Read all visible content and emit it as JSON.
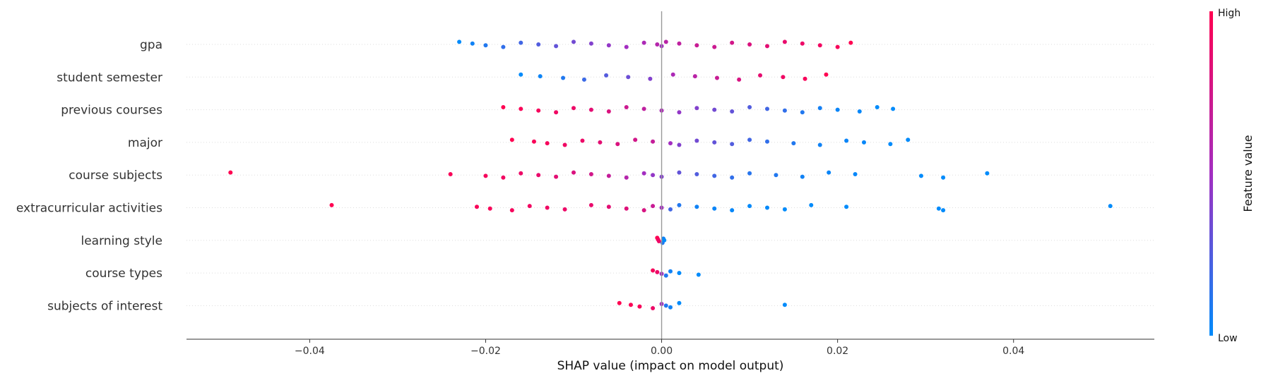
{
  "chart_data": {
    "type": "scatter",
    "subtype": "shap-beeswarm",
    "title": "",
    "xlabel": "SHAP value (impact on model output)",
    "xlim": [
      -0.054,
      0.056
    ],
    "xticks": [
      -0.04,
      -0.02,
      0.0,
      0.02,
      0.04
    ],
    "xtick_labels": [
      "−0.04",
      "−0.02",
      "0.00",
      "0.02",
      "0.04"
    ],
    "zero_line": 0.0,
    "row_gridlines": true,
    "colorbar": {
      "label": "Feature value",
      "high_label": "High",
      "low_label": "Low",
      "low_color": "#008bfb",
      "mid_color": "#a32ec1",
      "high_color": "#ff0051"
    },
    "features": [
      {
        "name": "gpa",
        "points": [
          [
            -0.023,
            0.0
          ],
          [
            -0.0215,
            0.05
          ],
          [
            -0.02,
            0.1
          ],
          [
            -0.018,
            0.15
          ],
          [
            -0.016,
            0.2
          ],
          [
            -0.014,
            0.25
          ],
          [
            -0.012,
            0.3
          ],
          [
            -0.01,
            0.35
          ],
          [
            -0.008,
            0.4
          ],
          [
            -0.006,
            0.45
          ],
          [
            -0.004,
            0.5
          ],
          [
            -0.002,
            0.55
          ],
          [
            -0.0005,
            0.6
          ],
          [
            0.0,
            0.5
          ],
          [
            0.0005,
            0.62
          ],
          [
            0.002,
            0.65
          ],
          [
            0.004,
            0.7
          ],
          [
            0.006,
            0.72
          ],
          [
            0.008,
            0.75
          ],
          [
            0.01,
            0.8
          ],
          [
            0.012,
            0.85
          ],
          [
            0.014,
            0.88
          ],
          [
            0.016,
            0.9
          ],
          [
            0.018,
            0.93
          ],
          [
            0.02,
            0.96
          ],
          [
            0.0215,
            1.0
          ]
        ]
      },
      {
        "name": "student semester",
        "points": [
          [
            -0.016,
            0.0
          ],
          [
            -0.0138,
            0.04
          ],
          [
            -0.0112,
            0.1
          ],
          [
            -0.0088,
            0.18
          ],
          [
            -0.0063,
            0.26
          ],
          [
            -0.0038,
            0.33
          ],
          [
            -0.0013,
            0.4
          ],
          [
            0.0013,
            0.55
          ],
          [
            0.0038,
            0.62
          ],
          [
            0.0063,
            0.7
          ],
          [
            0.0088,
            0.78
          ],
          [
            0.0112,
            0.86
          ],
          [
            0.0138,
            0.92
          ],
          [
            0.0163,
            0.96
          ],
          [
            0.0187,
            1.0
          ]
        ]
      },
      {
        "name": "previous courses",
        "points": [
          [
            -0.018,
            1.0
          ],
          [
            -0.016,
            0.97
          ],
          [
            -0.014,
            0.95
          ],
          [
            -0.012,
            0.92
          ],
          [
            -0.01,
            0.9
          ],
          [
            -0.008,
            0.85
          ],
          [
            -0.006,
            0.8
          ],
          [
            -0.004,
            0.72
          ],
          [
            -0.002,
            0.65
          ],
          [
            0.0,
            0.55
          ],
          [
            0.002,
            0.45
          ],
          [
            0.004,
            0.4
          ],
          [
            0.006,
            0.35
          ],
          [
            0.008,
            0.3
          ],
          [
            0.01,
            0.25
          ],
          [
            0.012,
            0.2
          ],
          [
            0.014,
            0.15
          ],
          [
            0.016,
            0.1
          ],
          [
            0.018,
            0.06
          ],
          [
            0.02,
            0.03
          ],
          [
            0.0225,
            0.02
          ],
          [
            0.0245,
            0.0
          ],
          [
            0.0263,
            0.0
          ]
        ]
      },
      {
        "name": "major",
        "points": [
          [
            -0.017,
            1.0
          ],
          [
            -0.0145,
            0.97
          ],
          [
            -0.013,
            0.95
          ],
          [
            -0.011,
            0.92
          ],
          [
            -0.009,
            0.9
          ],
          [
            -0.007,
            0.85
          ],
          [
            -0.005,
            0.8
          ],
          [
            -0.003,
            0.75
          ],
          [
            -0.001,
            0.68
          ],
          [
            0.001,
            0.5
          ],
          [
            0.002,
            0.4
          ],
          [
            0.004,
            0.35
          ],
          [
            0.006,
            0.3
          ],
          [
            0.008,
            0.25
          ],
          [
            0.01,
            0.2
          ],
          [
            0.012,
            0.15
          ],
          [
            0.015,
            0.1
          ],
          [
            0.018,
            0.05
          ],
          [
            0.021,
            0.03
          ],
          [
            0.023,
            0.02
          ],
          [
            0.026,
            0.0
          ],
          [
            0.028,
            0.0
          ]
        ]
      },
      {
        "name": "course subjects",
        "points": [
          [
            -0.049,
            1.0
          ],
          [
            -0.024,
            0.97
          ],
          [
            -0.02,
            0.95
          ],
          [
            -0.018,
            0.93
          ],
          [
            -0.016,
            0.9
          ],
          [
            -0.014,
            0.88
          ],
          [
            -0.012,
            0.85
          ],
          [
            -0.01,
            0.8
          ],
          [
            -0.008,
            0.75
          ],
          [
            -0.006,
            0.68
          ],
          [
            -0.004,
            0.6
          ],
          [
            -0.002,
            0.5
          ],
          [
            -0.001,
            0.45
          ],
          [
            0.0,
            0.4
          ],
          [
            0.002,
            0.3
          ],
          [
            0.004,
            0.25
          ],
          [
            0.006,
            0.2
          ],
          [
            0.008,
            0.15
          ],
          [
            0.01,
            0.12
          ],
          [
            0.013,
            0.1
          ],
          [
            0.016,
            0.05
          ],
          [
            0.019,
            0.03
          ],
          [
            0.022,
            0.02
          ],
          [
            0.0295,
            0.0
          ],
          [
            0.032,
            0.0
          ],
          [
            0.037,
            0.0
          ]
        ]
      },
      {
        "name": "extracurricular activities",
        "points": [
          [
            -0.0375,
            1.0
          ],
          [
            -0.021,
            0.97
          ],
          [
            -0.0195,
            0.96
          ],
          [
            -0.017,
            0.95
          ],
          [
            -0.015,
            0.93
          ],
          [
            -0.013,
            0.92
          ],
          [
            -0.011,
            0.9
          ],
          [
            -0.008,
            0.88
          ],
          [
            -0.006,
            0.85
          ],
          [
            -0.004,
            0.82
          ],
          [
            -0.002,
            0.78
          ],
          [
            -0.001,
            0.7
          ],
          [
            0.0,
            0.5
          ],
          [
            0.001,
            0.2
          ],
          [
            0.002,
            0.1
          ],
          [
            0.004,
            0.05
          ],
          [
            0.006,
            0.03
          ],
          [
            0.008,
            0.02
          ],
          [
            0.01,
            0.01
          ],
          [
            0.012,
            0.01
          ],
          [
            0.014,
            0.0
          ],
          [
            0.017,
            0.0
          ],
          [
            0.021,
            0.0
          ],
          [
            0.0315,
            0.0
          ],
          [
            0.032,
            0.0
          ],
          [
            0.051,
            0.0
          ]
        ]
      },
      {
        "name": "learning style",
        "points": [
          [
            -0.0005,
            1.0
          ],
          [
            -0.0004,
            0.95
          ],
          [
            -0.0003,
            0.9
          ],
          [
            0.0001,
            0.1
          ],
          [
            0.0002,
            0.05
          ],
          [
            0.0003,
            0.0
          ]
        ]
      },
      {
        "name": "course types",
        "points": [
          [
            -0.001,
            0.95
          ],
          [
            -0.0005,
            0.9
          ],
          [
            0.0,
            0.5
          ],
          [
            0.0005,
            0.1
          ],
          [
            0.001,
            0.05
          ],
          [
            0.002,
            0.0
          ],
          [
            0.0042,
            0.0
          ]
        ]
      },
      {
        "name": "subjects of interest",
        "points": [
          [
            -0.0048,
            1.0
          ],
          [
            -0.0035,
            0.98
          ],
          [
            -0.0025,
            0.96
          ],
          [
            -0.001,
            0.9
          ],
          [
            0.0,
            0.5
          ],
          [
            0.0005,
            0.1
          ],
          [
            0.001,
            0.05
          ],
          [
            0.002,
            0.0
          ],
          [
            0.014,
            0.0
          ]
        ]
      }
    ]
  }
}
